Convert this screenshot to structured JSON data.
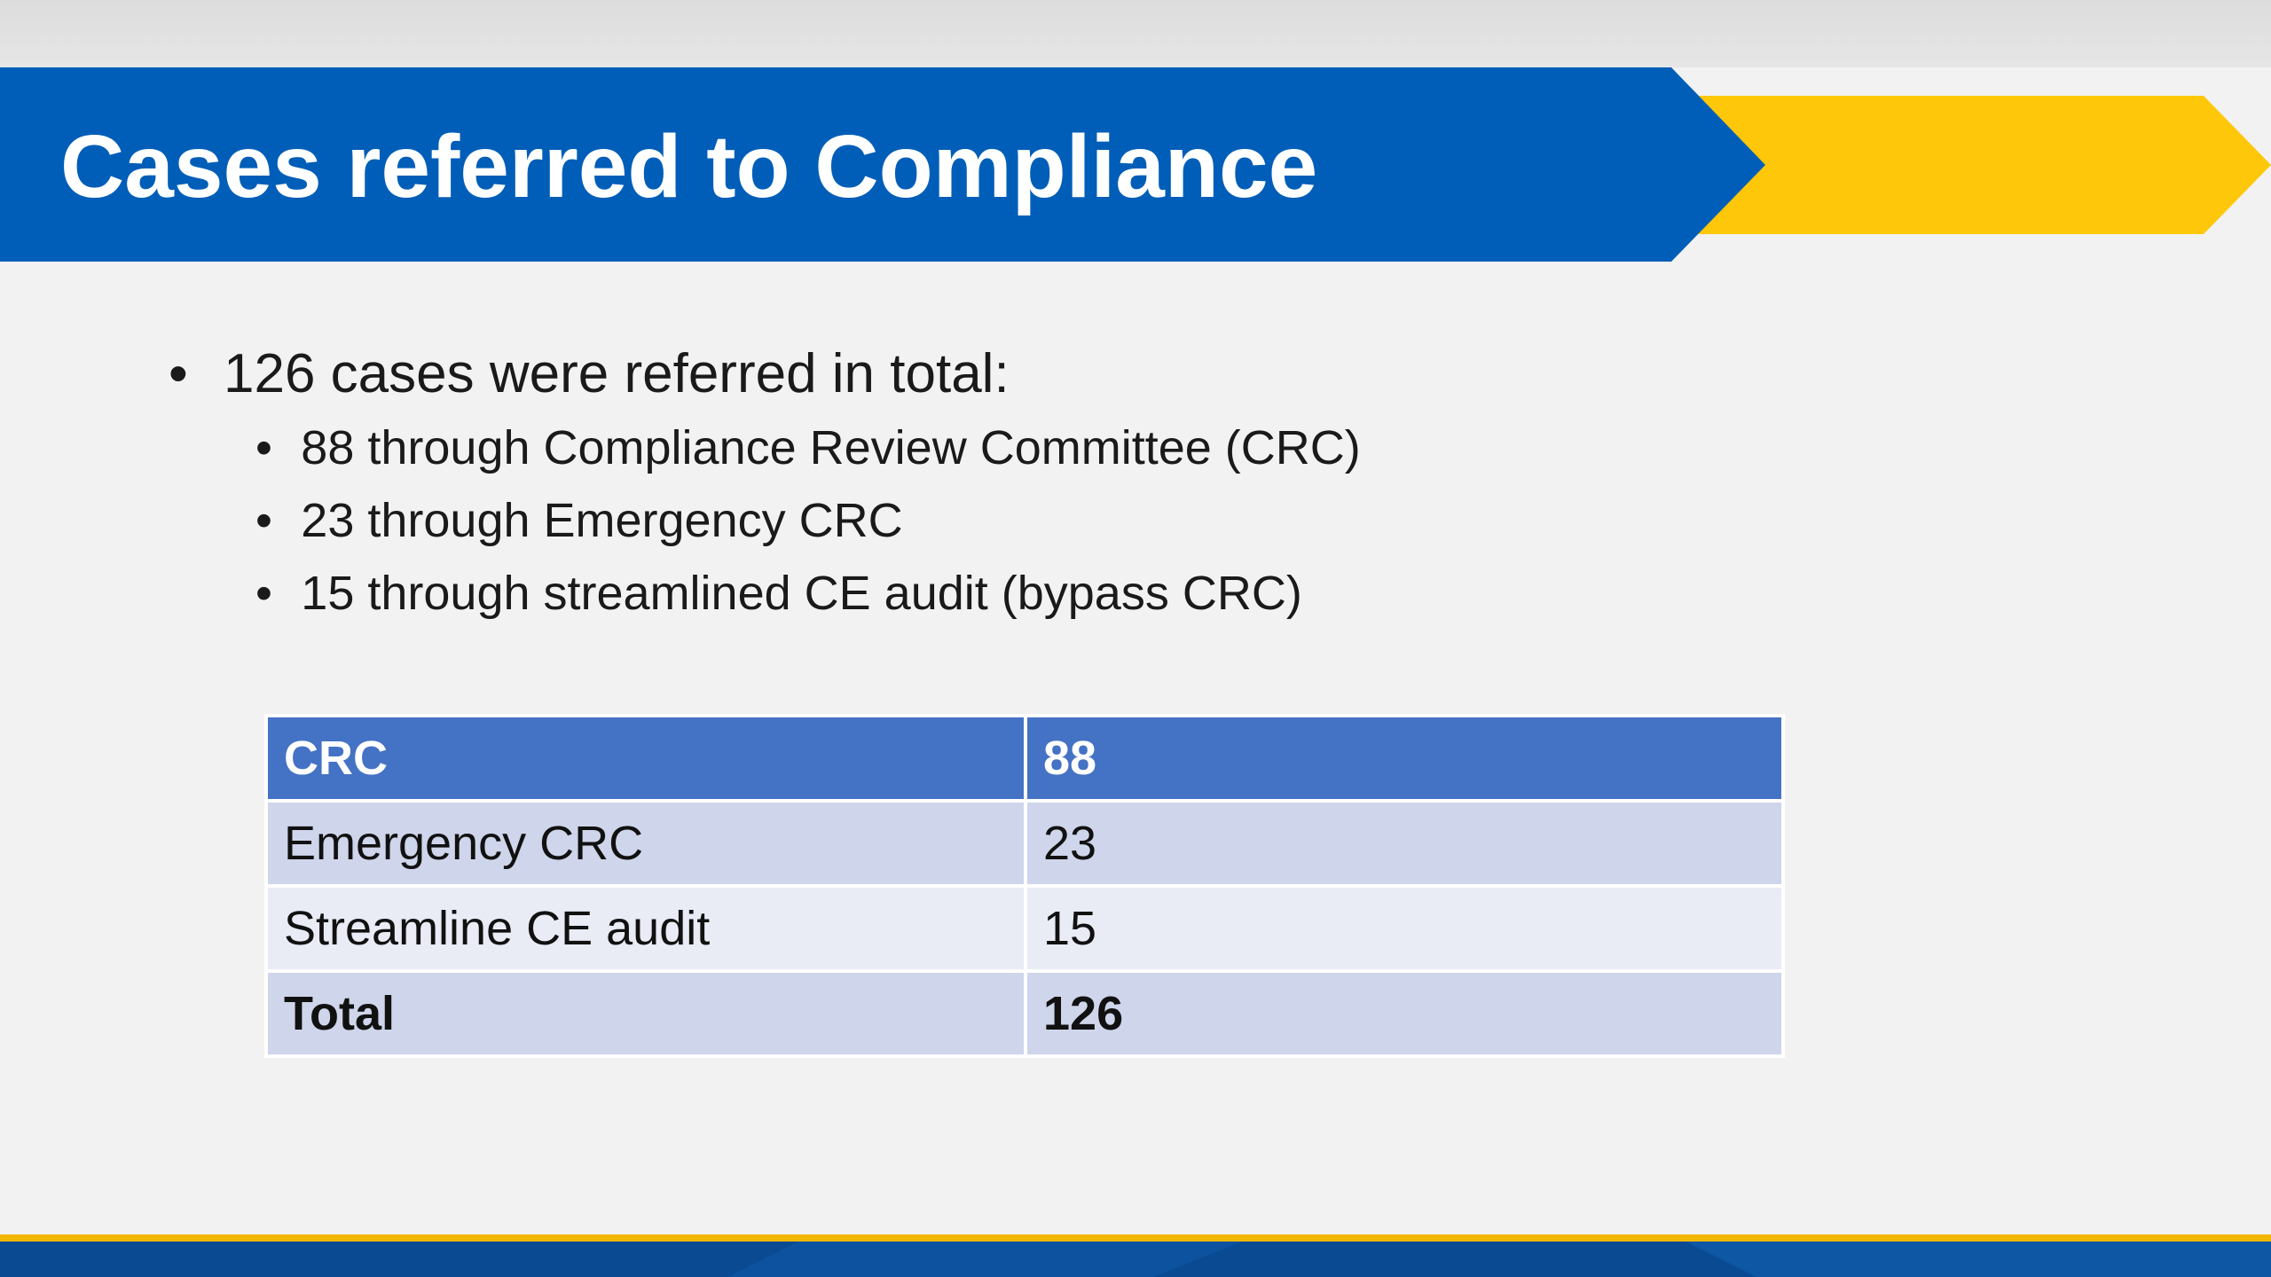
{
  "slide": {
    "title": "Cases referred to Compliance",
    "bullets": {
      "main": "126 cases were referred in total:",
      "sub": [
        "88 through Compliance Review Committee (CRC)",
        "23 through Emergency CRC",
        "15 through streamlined CE audit (bypass CRC)"
      ]
    },
    "table": {
      "rows": [
        [
          "CRC",
          "88"
        ],
        [
          "Emergency CRC",
          "23"
        ],
        [
          "Streamline CE audit",
          "15"
        ],
        [
          "Total",
          "126"
        ]
      ]
    }
  },
  "colors": {
    "banner_blue": "#005eb8",
    "banner_yellow": "#ffc70a",
    "table_header": "#4472c4",
    "table_band_dark": "#cfd5ea",
    "table_band_light": "#e9ebf5",
    "footer_blue": "#0a4a92",
    "footer_line": "#f2b705"
  }
}
